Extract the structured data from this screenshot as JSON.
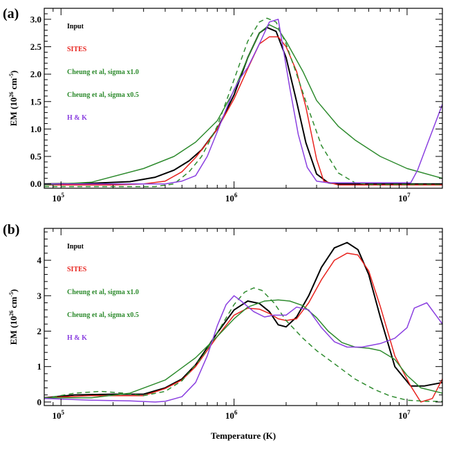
{
  "chart_data": [
    {
      "type": "line",
      "panel_label": "(a)",
      "xscale": "log",
      "xlim": [
        80000,
        16000000
      ],
      "ylim": [
        -0.08,
        3.2
      ],
      "xticks": [
        {
          "value": 100000,
          "base": "10",
          "exp": "5"
        },
        {
          "value": 1000000,
          "base": "10",
          "exp": "6"
        },
        {
          "value": 10000000,
          "base": "10",
          "exp": "7"
        }
      ],
      "yticks": [
        {
          "value": 0.0,
          "label": "0.0"
        },
        {
          "value": 0.5,
          "label": "0.5"
        },
        {
          "value": 1.0,
          "label": "1.0"
        },
        {
          "value": 1.5,
          "label": "1.5"
        },
        {
          "value": 2.0,
          "label": "2.0"
        },
        {
          "value": 2.5,
          "label": "2.5"
        },
        {
          "value": 3.0,
          "label": "3.0"
        }
      ],
      "ylabel": {
        "prefix": "EM (10",
        "sup1": "26",
        "mid": " cm",
        "sup2": "-5",
        "suffix": ")"
      },
      "xlabel": "",
      "legend_position": "top-left",
      "series": [
        {
          "name": "Input",
          "color": "#000000",
          "dash": false,
          "x": [
            80000,
            150000,
            250000,
            350000,
            450000,
            550000,
            650000,
            800000,
            1000000,
            1200000,
            1400000,
            1550000,
            1750000,
            2000000,
            2300000,
            2600000,
            3000000,
            3500000,
            4000000,
            16000000
          ],
          "y": [
            0.0,
            0.01,
            0.04,
            0.12,
            0.25,
            0.42,
            0.62,
            1.0,
            1.62,
            2.3,
            2.75,
            2.85,
            2.78,
            2.3,
            1.5,
            0.75,
            0.18,
            0.02,
            0.0,
            0.0
          ]
        },
        {
          "name": "SITES",
          "color": "#e8231e",
          "dash": false,
          "x": [
            80000,
            200000,
            300000,
            400000,
            500000,
            600000,
            700000,
            800000,
            1000000,
            1200000,
            1400000,
            1600000,
            1800000,
            2000000,
            2300000,
            2600000,
            3000000,
            3300000,
            4000000,
            16000000
          ],
          "y": [
            -0.02,
            -0.02,
            0.0,
            0.05,
            0.22,
            0.48,
            0.75,
            1.0,
            1.55,
            2.1,
            2.55,
            2.68,
            2.68,
            2.5,
            2.05,
            1.4,
            0.45,
            0.05,
            -0.02,
            -0.02
          ]
        },
        {
          "name": "Cheung et al, sigma x1.0",
          "color": "#2e8b2e",
          "dash": false,
          "x": [
            80000,
            150000,
            300000,
            450000,
            600000,
            800000,
            1000000,
            1200000,
            1400000,
            1600000,
            1800000,
            2000000,
            2500000,
            3000000,
            4000000,
            5000000,
            7000000,
            10000000,
            16000000
          ],
          "y": [
            -0.02,
            0.03,
            0.28,
            0.5,
            0.76,
            1.15,
            1.7,
            2.3,
            2.75,
            2.9,
            2.82,
            2.6,
            2.05,
            1.52,
            1.05,
            0.8,
            0.5,
            0.28,
            0.1
          ]
        },
        {
          "name": "Cheung et al, sigma x0.5",
          "color": "#2e8b2e",
          "dash": true,
          "x": [
            80000,
            350000,
            450000,
            550000,
            650000,
            800000,
            1000000,
            1200000,
            1400000,
            1550000,
            1750000,
            2000000,
            2300000,
            2700000,
            3200000,
            4000000,
            5000000,
            6000000,
            16000000
          ],
          "y": [
            -0.05,
            -0.05,
            0.0,
            0.22,
            0.5,
            1.05,
            1.9,
            2.6,
            2.95,
            3.02,
            2.95,
            2.55,
            2.0,
            1.35,
            0.7,
            0.2,
            0.02,
            -0.01,
            -0.01
          ]
        },
        {
          "name": "H & K",
          "color": "#8a3fe0",
          "dash": false,
          "x": [
            80000,
            300000,
            400000,
            500000,
            600000,
            700000,
            800000,
            1000000,
            1100000,
            1200000,
            1400000,
            1600000,
            1800000,
            1950000,
            2100000,
            2350000,
            2650000,
            3000000,
            3500000,
            4200000,
            6000000,
            9000000,
            10500000,
            11500000,
            13000000,
            16000000
          ],
          "y": [
            0.0,
            0.0,
            0.0,
            0.05,
            0.15,
            0.5,
            0.95,
            1.72,
            1.95,
            2.12,
            2.55,
            2.95,
            3.0,
            2.35,
            1.75,
            0.9,
            0.3,
            0.05,
            0.02,
            0.02,
            0.02,
            0.02,
            0.02,
            0.25,
            0.7,
            1.45
          ]
        }
      ]
    },
    {
      "type": "line",
      "panel_label": "(b)",
      "xscale": "log",
      "xlim": [
        80000,
        16000000
      ],
      "ylim": [
        -0.1,
        4.9
      ],
      "xticks": [
        {
          "value": 100000,
          "base": "10",
          "exp": "5"
        },
        {
          "value": 1000000,
          "base": "10",
          "exp": "6"
        },
        {
          "value": 10000000,
          "base": "10",
          "exp": "7"
        }
      ],
      "yticks": [
        {
          "value": 0,
          "label": "0"
        },
        {
          "value": 1,
          "label": "1"
        },
        {
          "value": 2,
          "label": "2"
        },
        {
          "value": 3,
          "label": "3"
        },
        {
          "value": 4,
          "label": "4"
        }
      ],
      "ylabel": {
        "prefix": "EM (10",
        "sup1": "26",
        "mid": " cm",
        "sup2": "-5",
        "suffix": ")"
      },
      "xlabel": "Temperature (K)",
      "legend_position": "top-left",
      "series": [
        {
          "name": "Input",
          "color": "#000000",
          "dash": false,
          "x": [
            80000,
            120000,
            200000,
            300000,
            400000,
            500000,
            600000,
            800000,
            1000000,
            1200000,
            1400000,
            1600000,
            1800000,
            2000000,
            2300000,
            2700000,
            3200000,
            3800000,
            4500000,
            5200000,
            6000000,
            7000000,
            8500000,
            10500000,
            12500000,
            16000000
          ],
          "y": [
            0.12,
            0.2,
            0.22,
            0.22,
            0.4,
            0.65,
            1.05,
            1.95,
            2.6,
            2.85,
            2.78,
            2.55,
            2.18,
            2.12,
            2.4,
            3.0,
            3.8,
            4.35,
            4.5,
            4.3,
            3.6,
            2.4,
            1.0,
            0.45,
            0.45,
            0.55
          ]
        },
        {
          "name": "SITES",
          "color": "#e8231e",
          "dash": false,
          "x": [
            80000,
            150000,
            300000,
            400000,
            500000,
            600000,
            800000,
            1000000,
            1200000,
            1400000,
            1600000,
            1800000,
            2000000,
            2300000,
            2700000,
            3200000,
            3800000,
            4500000,
            5200000,
            6000000,
            7000000,
            8500000,
            10500000,
            12000000,
            14000000,
            16000000
          ],
          "y": [
            0.12,
            0.18,
            0.18,
            0.38,
            0.62,
            1.0,
            1.85,
            2.45,
            2.65,
            2.62,
            2.5,
            2.35,
            2.3,
            2.35,
            2.8,
            3.45,
            4.0,
            4.2,
            4.15,
            3.7,
            2.7,
            1.3,
            0.45,
            0.0,
            0.1,
            0.65
          ]
        },
        {
          "name": "Cheung et al, sigma x1.0",
          "color": "#2e8b2e",
          "dash": false,
          "x": [
            80000,
            150000,
            250000,
            400000,
            600000,
            800000,
            1000000,
            1200000,
            1500000,
            1800000,
            2100000,
            2500000,
            3000000,
            3500000,
            4200000,
            5000000,
            6000000,
            7000000,
            8500000,
            10000000,
            12000000,
            16000000
          ],
          "y": [
            0.12,
            0.12,
            0.25,
            0.62,
            1.25,
            1.85,
            2.35,
            2.68,
            2.85,
            2.88,
            2.85,
            2.72,
            2.38,
            2.0,
            1.68,
            1.55,
            1.52,
            1.45,
            1.2,
            0.75,
            0.4,
            0.25
          ]
        },
        {
          "name": "Cheung et al, sigma x0.5",
          "color": "#2e8b2e",
          "dash": true,
          "x": [
            80000,
            120000,
            170000,
            230000,
            300000,
            400000,
            500000,
            650000,
            800000,
            1000000,
            1150000,
            1300000,
            1450000,
            1700000,
            2000000,
            2500000,
            3000000,
            4000000,
            5000000,
            6500000,
            8000000,
            10000000,
            13000000,
            16000000
          ],
          "y": [
            0.1,
            0.25,
            0.3,
            0.25,
            0.18,
            0.3,
            0.6,
            1.25,
            1.95,
            2.75,
            3.1,
            3.22,
            3.15,
            2.8,
            2.3,
            1.8,
            1.45,
            1.0,
            0.65,
            0.35,
            0.17,
            0.05,
            0.02,
            0.02
          ]
        },
        {
          "name": "H & K",
          "color": "#8a3fe0",
          "dash": false,
          "x": [
            80000,
            150000,
            250000,
            350000,
            400000,
            500000,
            600000,
            700000,
            800000,
            900000,
            1000000,
            1100000,
            1300000,
            1500000,
            1700000,
            2000000,
            2300000,
            2700000,
            3200000,
            3800000,
            4500000,
            5500000,
            7000000,
            8500000,
            10000000,
            11000000,
            13000000,
            16000000
          ],
          "y": [
            0.1,
            0.05,
            0.03,
            0.0,
            0.02,
            0.15,
            0.55,
            1.3,
            2.15,
            2.75,
            3.0,
            2.85,
            2.55,
            2.4,
            2.45,
            2.45,
            2.68,
            2.6,
            2.1,
            1.7,
            1.55,
            1.55,
            1.65,
            1.8,
            2.1,
            2.65,
            2.8,
            2.2
          ]
        }
      ]
    }
  ]
}
